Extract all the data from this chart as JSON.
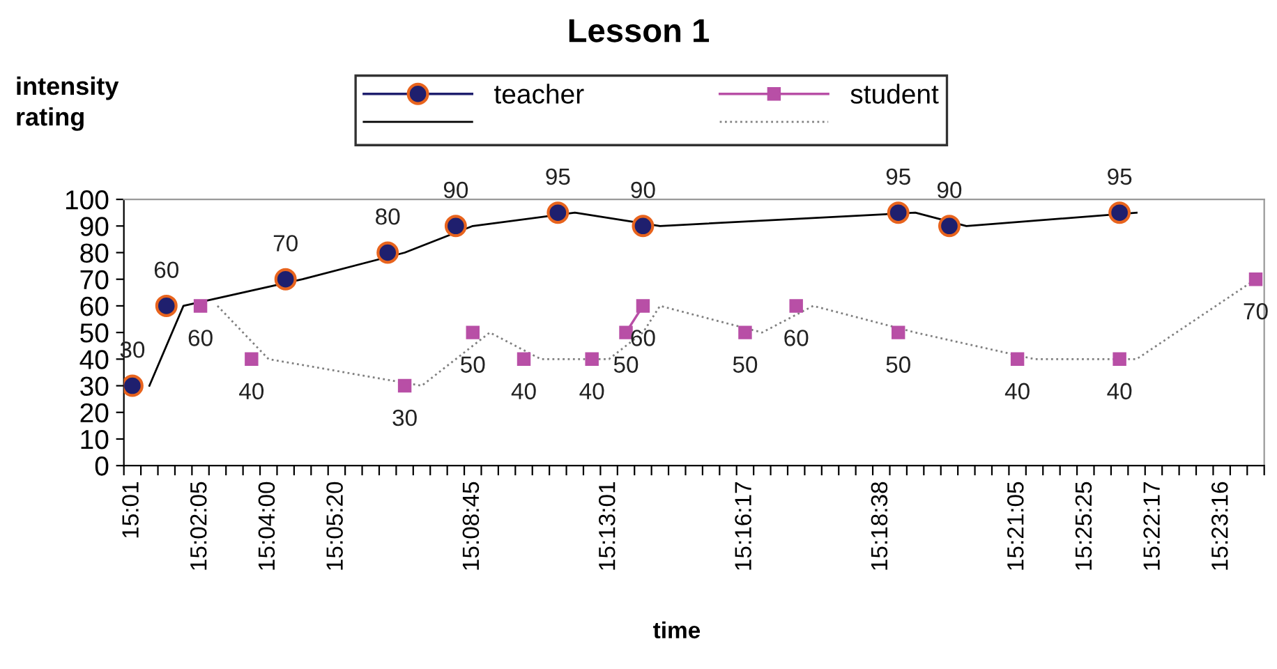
{
  "chart_data": {
    "type": "line",
    "title": "Lesson 1",
    "ylabel": "intensity rating",
    "xlabel": "time",
    "categories": [
      "15:01",
      null,
      null,
      null,
      "15:02:05",
      null,
      null,
      null,
      "15:04:00",
      null,
      null,
      null,
      "15:05:20",
      null,
      null,
      null,
      null,
      null,
      null,
      null,
      "15:08:45",
      null,
      null,
      null,
      null,
      null,
      null,
      null,
      "15:13:01",
      null,
      null,
      null,
      null,
      null,
      null,
      null,
      "15:16:17",
      null,
      null,
      null,
      null,
      null,
      null,
      null,
      "15:18:38",
      null,
      null,
      null,
      null,
      null,
      null,
      null,
      "15:21:05",
      null,
      null,
      null,
      "15:25:25",
      null,
      null,
      null,
      "15:22:17",
      null,
      null,
      null,
      "15:23:16",
      null,
      null
    ],
    "ylim": [
      0,
      100
    ],
    "yticks": [
      0,
      10,
      20,
      30,
      40,
      50,
      60,
      70,
      80,
      90,
      100
    ],
    "grid": false,
    "legend": "top",
    "series": [
      {
        "name": "teacher",
        "color": "#1f1f6e",
        "marker": "circle",
        "line_style": "solid",
        "data_labels": true,
        "values": [
          30,
          null,
          60,
          null,
          null,
          null,
          null,
          null,
          null,
          70,
          null,
          null,
          null,
          null,
          null,
          80,
          null,
          null,
          null,
          90,
          null,
          null,
          null,
          null,
          null,
          95,
          null,
          null,
          null,
          null,
          90,
          null,
          null,
          null,
          null,
          null,
          null,
          null,
          null,
          null,
          null,
          null,
          null,
          null,
          null,
          95,
          null,
          null,
          90,
          null,
          null,
          null,
          null,
          null,
          null,
          null,
          null,
          null,
          95,
          null,
          null,
          null,
          null,
          null,
          null,
          null,
          null
        ]
      },
      {
        "color": "#000000",
        "marker": "none",
        "line_style": "solid",
        "values": [
          null,
          30,
          null,
          60,
          null,
          null,
          null,
          null,
          null,
          null,
          70,
          null,
          null,
          null,
          null,
          null,
          80,
          null,
          null,
          null,
          90,
          null,
          null,
          null,
          null,
          null,
          95,
          null,
          null,
          null,
          null,
          90,
          null,
          null,
          null,
          null,
          null,
          null,
          null,
          null,
          null,
          null,
          null,
          null,
          null,
          null,
          95,
          null,
          null,
          90,
          null,
          null,
          null,
          null,
          null,
          null,
          null,
          null,
          null,
          95,
          null,
          null,
          null,
          null,
          null,
          null,
          null
        ]
      },
      {
        "name": "student",
        "color": "#b84fa6",
        "marker": "square",
        "line_style": "solid",
        "data_labels": true,
        "values": [
          null,
          null,
          null,
          null,
          60,
          null,
          null,
          40,
          null,
          null,
          null,
          null,
          null,
          null,
          null,
          null,
          30,
          null,
          null,
          null,
          50,
          null,
          null,
          40,
          null,
          null,
          null,
          40,
          null,
          50,
          60,
          null,
          null,
          null,
          null,
          null,
          50,
          null,
          null,
          60,
          null,
          null,
          null,
          null,
          null,
          50,
          null,
          null,
          null,
          null,
          null,
          null,
          40,
          null,
          null,
          null,
          null,
          null,
          40,
          null,
          null,
          null,
          null,
          null,
          null,
          null,
          70
        ]
      },
      {
        "color": "#808080",
        "marker": "none",
        "line_style": "dotted",
        "values": [
          null,
          null,
          null,
          null,
          null,
          60,
          null,
          null,
          40,
          null,
          null,
          null,
          null,
          null,
          null,
          null,
          null,
          30,
          null,
          null,
          null,
          50,
          null,
          null,
          40,
          null,
          null,
          null,
          40,
          null,
          50,
          60,
          null,
          null,
          null,
          null,
          null,
          50,
          null,
          null,
          60,
          null,
          null,
          null,
          null,
          null,
          50,
          null,
          null,
          null,
          null,
          null,
          null,
          40,
          null,
          null,
          null,
          null,
          null,
          40,
          null,
          null,
          null,
          null,
          null,
          null,
          70
        ]
      }
    ]
  }
}
